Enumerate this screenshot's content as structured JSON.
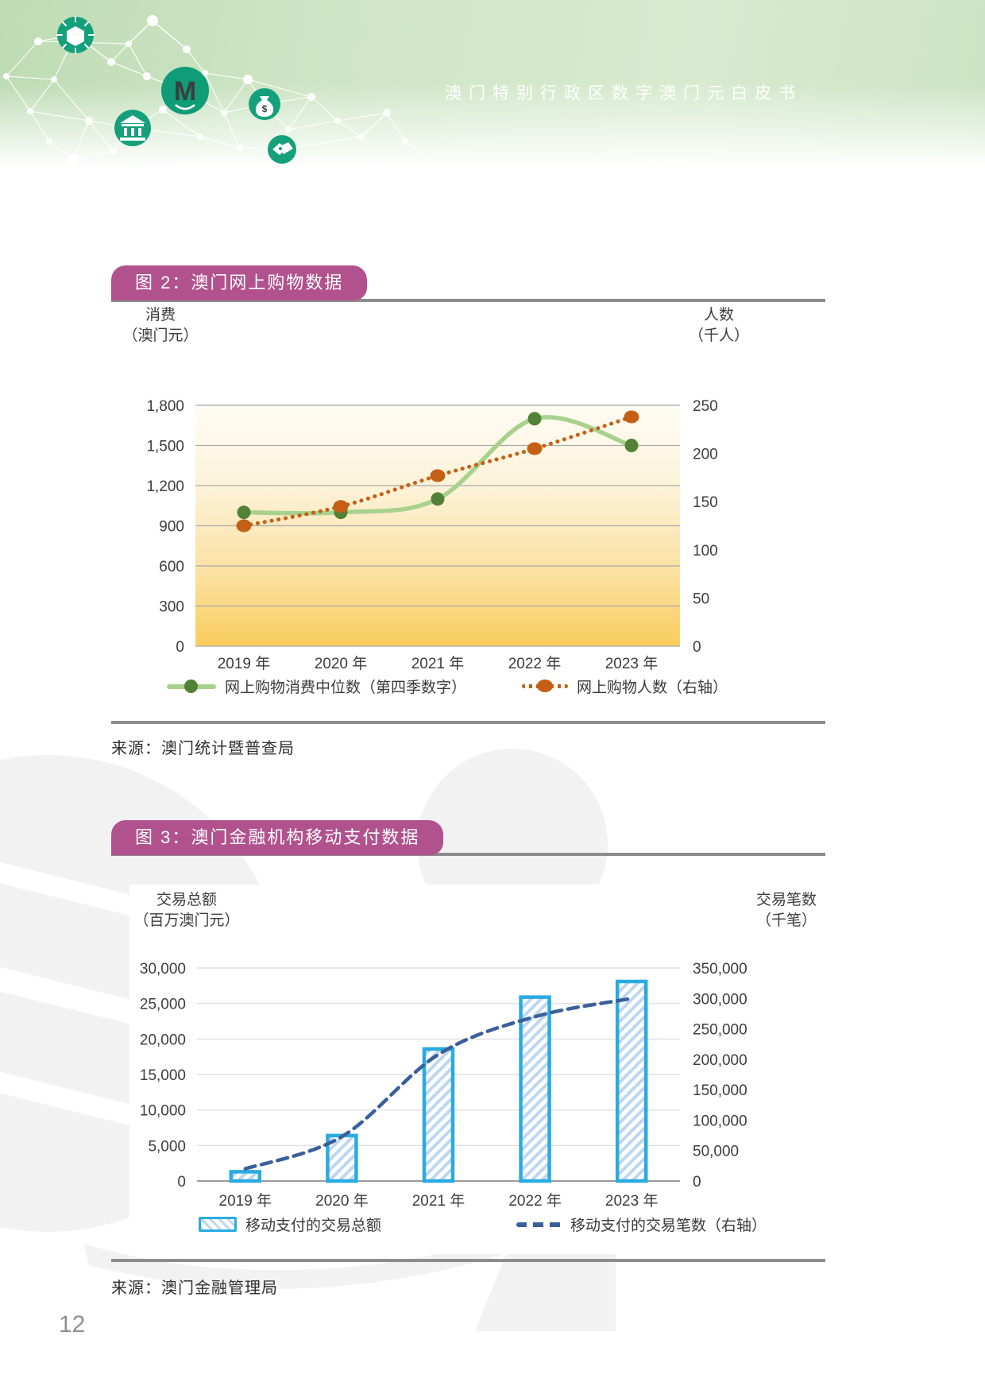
{
  "header": {
    "title": "澳门特别行政区数字澳门元白皮书",
    "icons": [
      "blockchain-cube-icon",
      "macau-pataca-m-icon",
      "money-bag-icon",
      "bank-icon",
      "handshake-icon"
    ],
    "band_color": "#cfe6c6",
    "icon_color": "#14a07b"
  },
  "figure2": {
    "badge": "图 2：澳门网上购物数据",
    "source": "来源：澳门统计暨普查局",
    "legend": [
      "网上购物消费中位数（第四季数字）",
      "网上购物人数（右轴）"
    ]
  },
  "figure3": {
    "badge": "图 3：澳门金融机构移动支付数据",
    "source": "来源：澳门金融管理局",
    "legend": [
      "移动支付的交易总额",
      "移动支付的交易笔数（右轴）"
    ]
  },
  "page_number": "12",
  "colors": {
    "badge": "#b1528e",
    "rule": "#8c8c8c",
    "green_line": "#a9d18e",
    "green_marker": "#538135",
    "orange": "#c55f14",
    "bar_border": "#29abe2",
    "bar_hatch": "#bdd7f1",
    "dashed_blue": "#3a5f9b",
    "gridline_fig2": "#a9a9a9",
    "gridline_fig3": "#d9d9d9",
    "plot_gradient_top": "#fefcf4",
    "plot_gradient_bottom": "#f9cd5c",
    "watermark": "#f2f2f2"
  },
  "chart_data": [
    {
      "type": "line",
      "title": "图 2：澳门网上购物数据",
      "categories": [
        "2019 年",
        "2020 年",
        "2021 年",
        "2022 年",
        "2023 年"
      ],
      "series": [
        {
          "name": "网上购物消费中位数（第四季数字）",
          "axis": "left",
          "line": "solid",
          "marker": "circle",
          "color": "#a9d18e",
          "marker_color": "#538135",
          "values": [
            1000,
            1000,
            1100,
            1700,
            1500
          ]
        },
        {
          "name": "网上购物人数（右轴）",
          "axis": "right",
          "line": "dotted",
          "marker": "ellipse",
          "color": "#c55f14",
          "marker_color": "#c55f14",
          "values": [
            125,
            145,
            177,
            205,
            238
          ]
        }
      ],
      "left_axis": {
        "title": "消费",
        "subtitle": "（澳门元）",
        "min": 0,
        "max": 1800,
        "step": 300
      },
      "right_axis": {
        "title": "人数",
        "subtitle": "（千人）",
        "min": 0,
        "max": 250,
        "step": 50
      },
      "grid": true,
      "plot_background": "yellow-gradient",
      "legend_position": "bottom"
    },
    {
      "type": "bar",
      "title": "图 3：澳门金融机构移动支付数据",
      "categories": [
        "2019 年",
        "2020 年",
        "2021 年",
        "2022 年",
        "2023 年"
      ],
      "series": [
        {
          "name": "移动支付的交易总额",
          "kind": "bar",
          "axis": "left",
          "color": "#29abe2",
          "fill": "hatched-light-blue",
          "values": [
            1300,
            6400,
            18600,
            25900,
            28100
          ]
        },
        {
          "name": "移动支付的交易笔数（右轴）",
          "kind": "line",
          "line": "dashed",
          "axis": "right",
          "color": "#3a5f9b",
          "values": [
            20000,
            73000,
            208000,
            270000,
            300000
          ]
        }
      ],
      "left_axis": {
        "title": "交易总额",
        "subtitle": "（百万澳门元）",
        "min": 0,
        "max": 30000,
        "step": 5000
      },
      "right_axis": {
        "title": "交易笔数",
        "subtitle": "（千笔）",
        "min": 0,
        "max": 350000,
        "step": 50000
      },
      "grid": true,
      "legend_position": "bottom"
    }
  ]
}
